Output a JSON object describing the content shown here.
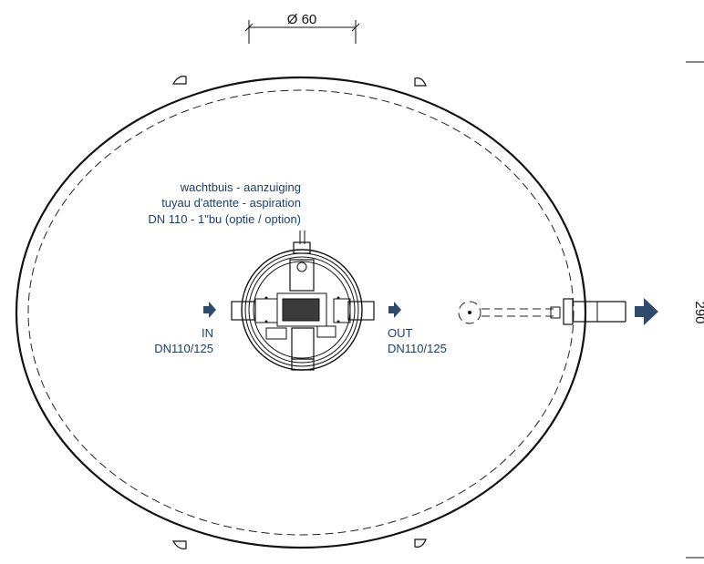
{
  "dimensions": {
    "diameter": "Ø 60",
    "height": "290"
  },
  "annotations": {
    "pipe_note_line1": "wachtbuis - aanzuiging",
    "pipe_note_line2": "tuyau d'attente - aspiration",
    "pipe_note_line3": "DN 110 - 1\"bu (optie / option)",
    "inlet_label": "IN",
    "inlet_size": "DN110/125",
    "outlet_label": "OUT",
    "outlet_size": "DN110/125"
  },
  "colors": {
    "annotation": "#1f3f66",
    "arrow": "#2f4a6b",
    "line": "#111111"
  }
}
